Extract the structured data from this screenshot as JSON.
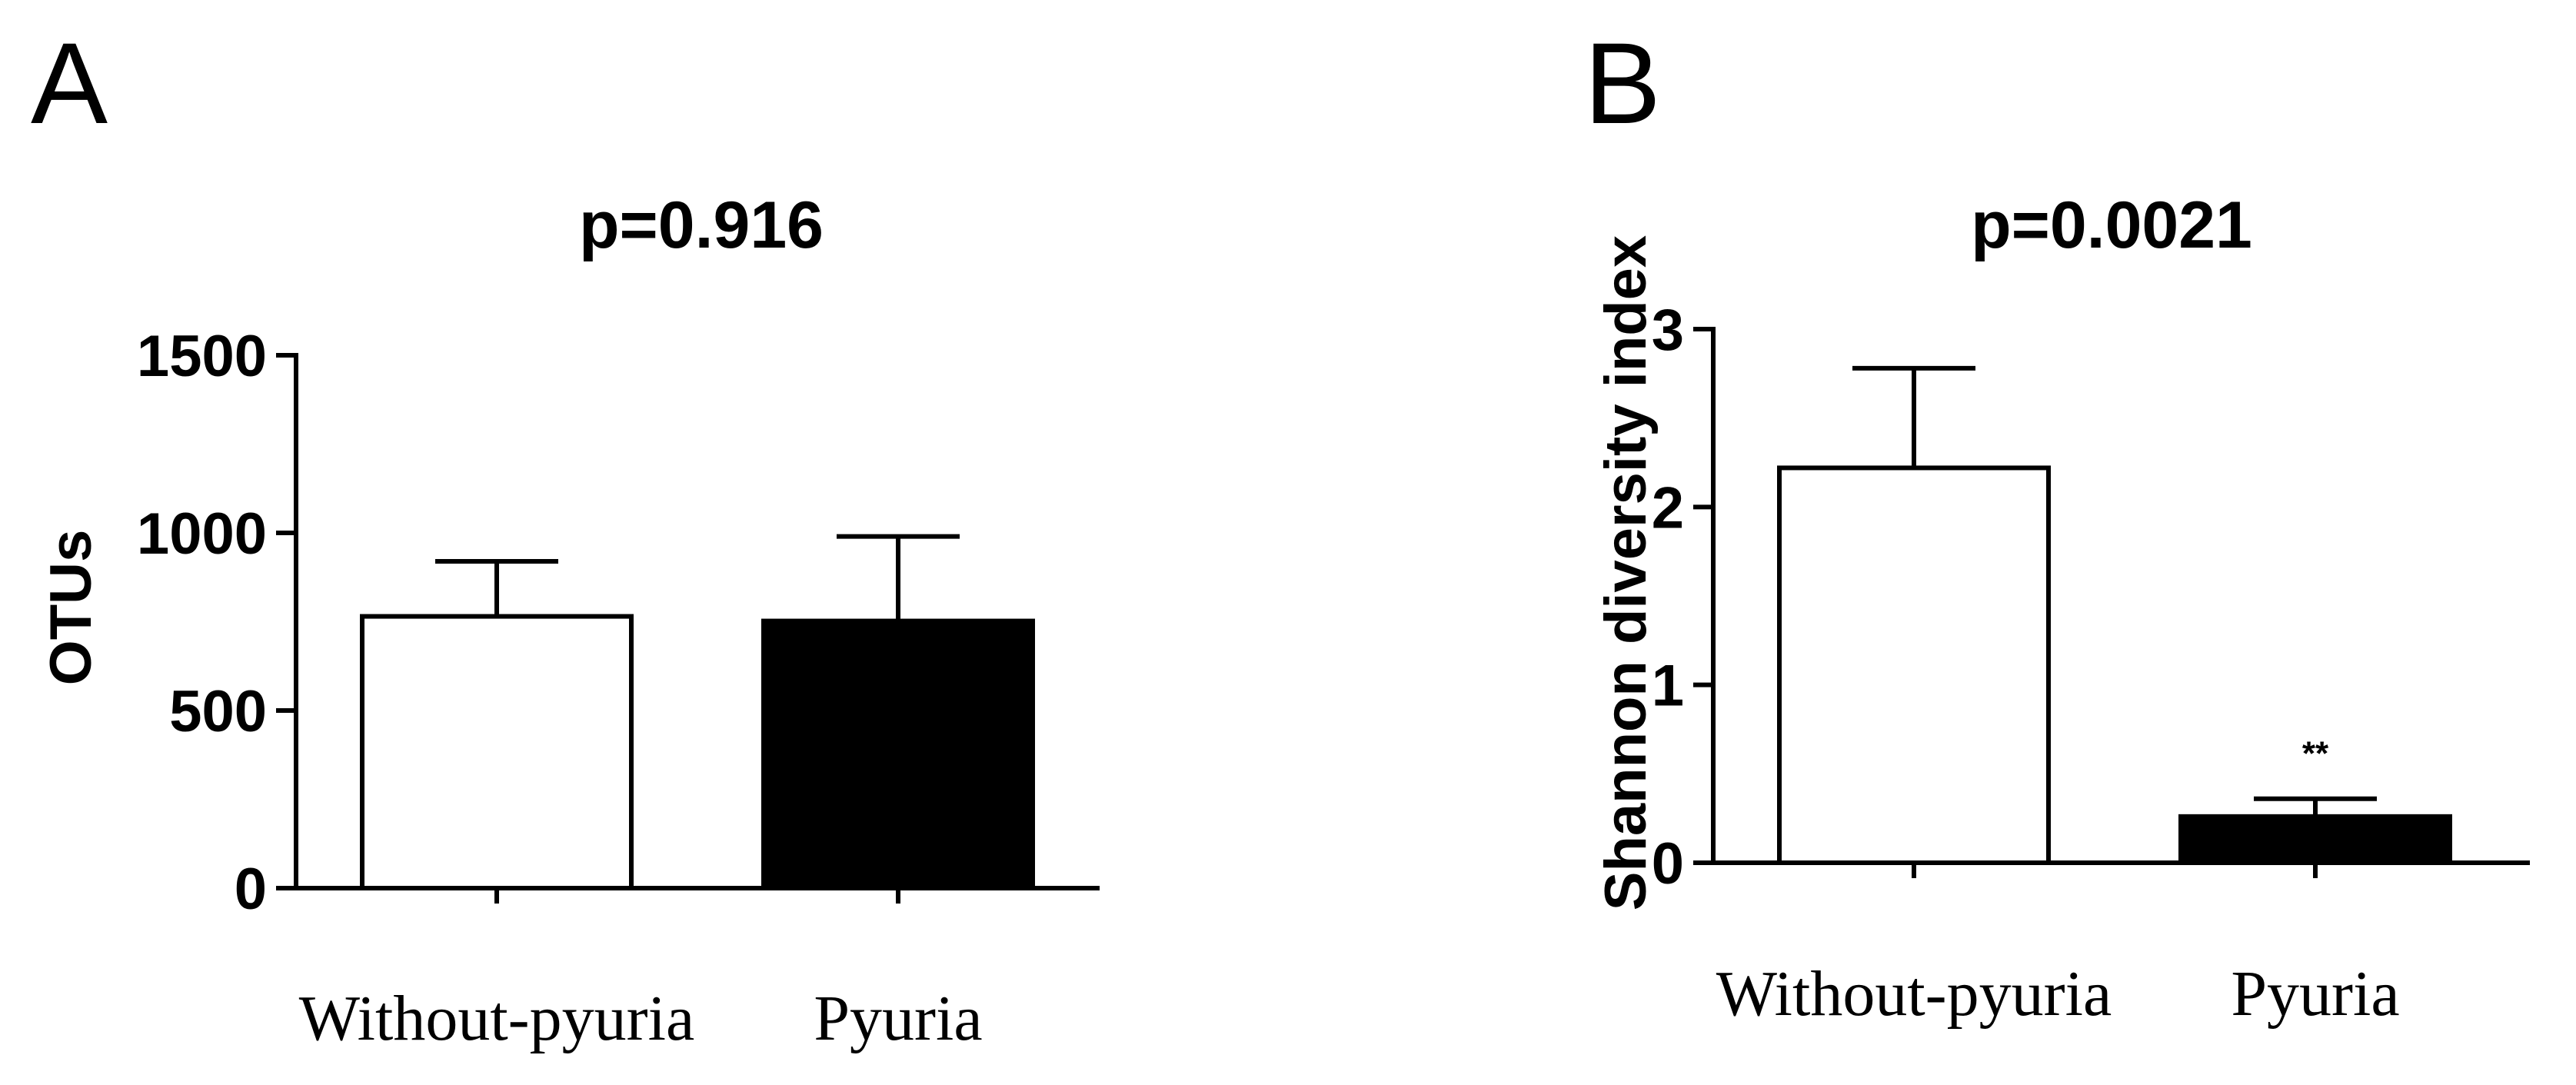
{
  "chart_data": [
    {
      "panel": "A",
      "type": "bar",
      "title": "p=0.916",
      "xlabel": "",
      "ylabel": "OTUs",
      "categories": [
        "Without-pyuria",
        "Pyuria"
      ],
      "values": [
        765,
        752
      ],
      "errors": [
        155,
        238
      ],
      "bar_colors": [
        "#ffffff",
        "#000000"
      ],
      "significance": [
        "",
        ""
      ],
      "ylim": [
        0,
        1500
      ],
      "yticks": [
        0,
        500,
        1000,
        1500
      ],
      "ytick_labels": [
        "0",
        "500",
        "1000",
        "1500"
      ],
      "grid": false,
      "legend": "none"
    },
    {
      "panel": "B",
      "type": "bar",
      "title": "p=0.0021",
      "xlabel": "",
      "ylabel": "Shannon diversity  index",
      "categories": [
        "Without-pyuria",
        "Pyuria"
      ],
      "values": [
        2.22,
        0.26
      ],
      "errors": [
        0.56,
        0.1
      ],
      "bar_colors": [
        "#ffffff",
        "#000000"
      ],
      "significance": [
        "",
        "**"
      ],
      "ylim": [
        0,
        3
      ],
      "yticks": [
        0,
        1,
        2,
        3
      ],
      "ytick_labels": [
        "0",
        "1",
        "2",
        "3"
      ],
      "grid": false,
      "legend": "none"
    }
  ]
}
